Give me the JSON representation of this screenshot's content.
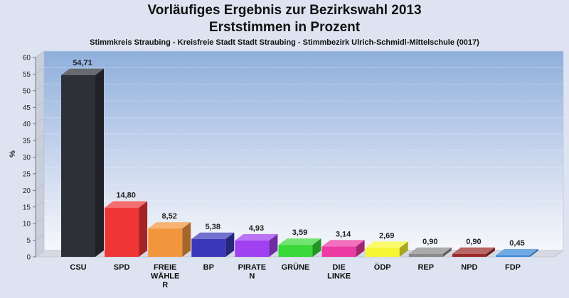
{
  "chart_data": {
    "type": "bar",
    "title": "Vorläufiges Ergebnis zur Bezirkswahl 2013",
    "title2": "Erststimmen in Prozent",
    "subtitle": "Stimmkreis Straubing - Kreisfreie Stadt Stadt Straubing - Stimmbezirk Ulrich-Schmidl-Mittelschule (0017)",
    "ylabel": "%",
    "ylim": [
      0,
      60
    ],
    "yticks": [
      0,
      5,
      10,
      15,
      20,
      25,
      30,
      35,
      40,
      45,
      50,
      55,
      60
    ],
    "categories": [
      [
        "CSU"
      ],
      [
        "SPD"
      ],
      [
        "FREIE",
        "WÄHLE",
        "R"
      ],
      [
        "BP"
      ],
      [
        "PIRATE",
        "N"
      ],
      [
        "GRÜNE"
      ],
      [
        "DIE",
        "LINKE"
      ],
      [
        "ÖDP"
      ],
      [
        "REP"
      ],
      [
        "NPD"
      ],
      [
        "FDP"
      ]
    ],
    "values": [
      54.71,
      14.8,
      8.52,
      5.38,
      4.93,
      3.59,
      3.14,
      2.69,
      0.9,
      0.9,
      0.45
    ],
    "value_labels": [
      "54,71",
      "14,80",
      "8,52",
      "5,38",
      "4,93",
      "3,59",
      "3,14",
      "2,69",
      "0,90",
      "0,90",
      "0,45"
    ],
    "colors": [
      "#2e3038",
      "#f03535",
      "#f2963e",
      "#3a38b8",
      "#a040f0",
      "#38d838",
      "#ec3aa4",
      "#f6f632",
      "#8a8a8a",
      "#9c2a2a",
      "#3a88d8"
    ],
    "grid": true,
    "legend": "none"
  }
}
